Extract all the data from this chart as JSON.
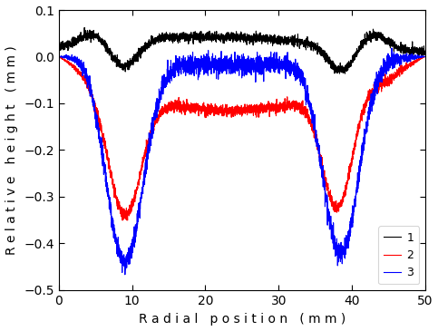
{
  "xlabel": "R a d i a l   p o s i t i o n   ( m m )",
  "ylabel": "R e l a t i v e   h e i g h t   ( m m )",
  "xlim": [
    0,
    50
  ],
  "ylim": [
    -0.5,
    0.1
  ],
  "xticks": [
    0,
    10,
    20,
    30,
    40,
    50
  ],
  "yticks": [
    -0.5,
    -0.4,
    -0.3,
    -0.2,
    -0.1,
    0.0,
    0.1
  ],
  "legend_labels": [
    "1",
    "2",
    "3"
  ],
  "colors": [
    "black",
    "red",
    "blue"
  ],
  "linewidth": 0.8,
  "noise_amplitude_black": 0.005,
  "noise_amplitude_red": 0.006,
  "noise_amplitude_blue": 0.01,
  "background_color": "#ffffff",
  "figsize": [
    4.83,
    3.65
  ],
  "dpi": 100
}
